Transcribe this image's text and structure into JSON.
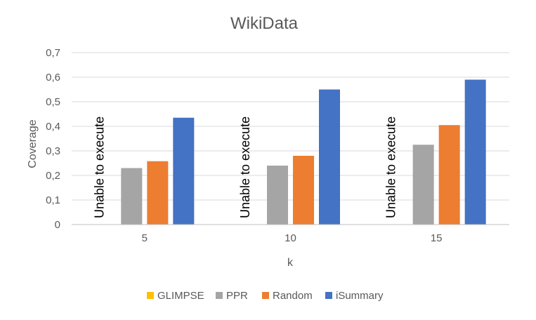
{
  "chart_data": {
    "type": "bar",
    "title": "WikiData",
    "xlabel": "k",
    "ylabel": "Coverage",
    "categories": [
      "5",
      "10",
      "15"
    ],
    "ylim": [
      0,
      0.7
    ],
    "yticks": [
      0,
      0.1,
      0.2,
      0.3,
      0.4,
      0.5,
      0.6,
      0.7
    ],
    "ytick_labels": [
      "0",
      "0,1",
      "0,2",
      "0,3",
      "0,4",
      "0,5",
      "0,6",
      "0,7"
    ],
    "grid": true,
    "legend_position": "bottom",
    "series": [
      {
        "name": "GLIMPSE",
        "values": [
          null,
          null,
          null
        ],
        "color": "#FFC000"
      },
      {
        "name": "PPR",
        "values": [
          0.23,
          0.24,
          0.325
        ],
        "color": "#A5A5A5"
      },
      {
        "name": "Random",
        "values": [
          0.258,
          0.28,
          0.405
        ],
        "color": "#ED7D31"
      },
      {
        "name": "iSummary",
        "values": [
          0.435,
          0.55,
          0.59
        ],
        "color": "#4472C4"
      }
    ],
    "annotations": [
      "Unable to execute",
      "Unable to execute",
      "Unable to execute"
    ]
  }
}
